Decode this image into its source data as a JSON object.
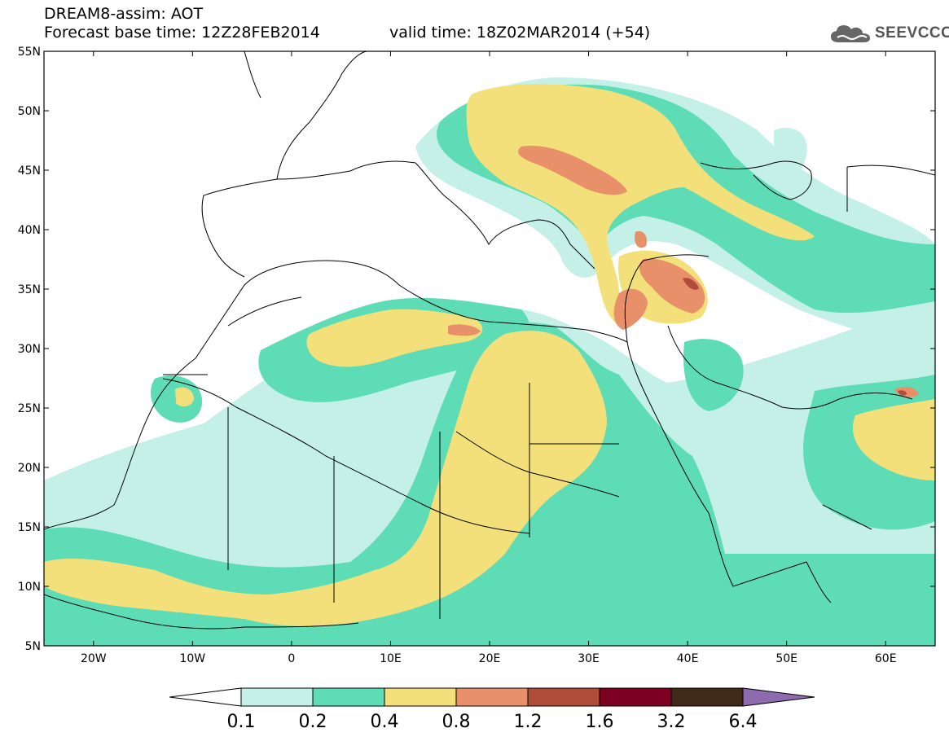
{
  "title": {
    "line1": "DREAM8-assim: AOT",
    "line2": "Forecast base time: 12Z28FEB2014",
    "valid": "valid time: 18Z02MAR2014 (+54)"
  },
  "logo": {
    "text": "SEEVCCC",
    "icon": "cloud-icon"
  },
  "map": {
    "lon_range": [
      -25,
      65
    ],
    "lat_range": [
      5,
      55
    ],
    "lat_ticks": [
      "5N",
      "10N",
      "15N",
      "20N",
      "25N",
      "30N",
      "35N",
      "40N",
      "45N",
      "50N",
      "55N"
    ],
    "lon_ticks": [
      "20W",
      "10W",
      "0",
      "10E",
      "20E",
      "30E",
      "40E",
      "50E",
      "60E"
    ],
    "lat_values": [
      5,
      10,
      15,
      20,
      25,
      30,
      35,
      40,
      45,
      50,
      55
    ],
    "lon_values": [
      -20,
      -10,
      0,
      10,
      20,
      30,
      40,
      50,
      60
    ]
  },
  "colorbar": {
    "labels": [
      "0.1",
      "0.2",
      "0.4",
      "0.8",
      "1.2",
      "1.6",
      "3.2",
      "6.4"
    ],
    "colors": [
      "#ffffff",
      "#c4f0e8",
      "#5ddcb6",
      "#f3e07a",
      "#e8906a",
      "#b04c3a",
      "#7d0022",
      "#3e2a17",
      "#8e6aae"
    ]
  }
}
